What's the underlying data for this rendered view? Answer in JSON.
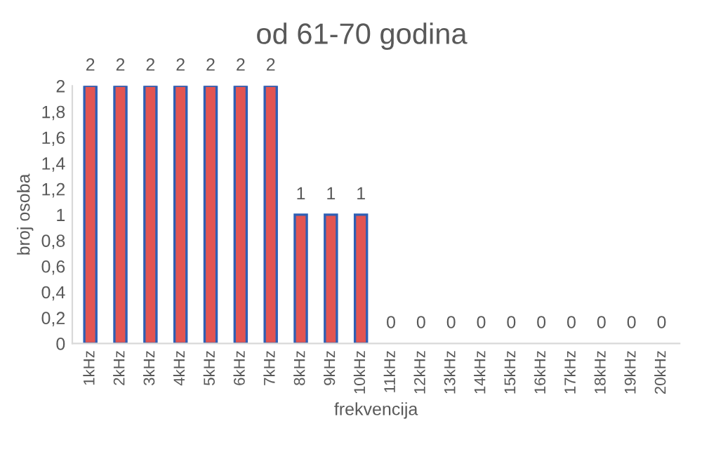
{
  "chart_data": {
    "type": "bar",
    "title": "od 61-70 godina",
    "xlabel": "frekvencija",
    "ylabel": "broj osoba",
    "categories": [
      "1kHz",
      "2kHz",
      "3kHz",
      "4kHz",
      "5kHz",
      "6kHz",
      "7kHz",
      "8kHz",
      "9kHz",
      "10kHz",
      "11kHz",
      "12kHz",
      "13kHz",
      "14kHz",
      "15kHz",
      "16kHz",
      "17kHz",
      "18kHz",
      "19kHz",
      "20kHz"
    ],
    "values": [
      2,
      2,
      2,
      2,
      2,
      2,
      2,
      1,
      1,
      1,
      0,
      0,
      0,
      0,
      0,
      0,
      0,
      0,
      0,
      0
    ],
    "color": "#e25552",
    "ylim": [
      0,
      2
    ],
    "yticks": [
      0,
      {
        "value": 0.2,
        "label": "0,2"
      },
      {
        "value": 0.4,
        "label": "0,4"
      },
      {
        "value": 0.6,
        "label": "0,6"
      },
      {
        "value": 0.8,
        "label": "0,8"
      },
      1,
      {
        "value": 1.2,
        "label": "1,2"
      },
      {
        "value": 1.4,
        "label": "1,4"
      },
      {
        "value": 1.6,
        "label": "1,6"
      },
      {
        "value": 1.8,
        "label": "1,8"
      },
      2
    ],
    "data_labels": true,
    "grid": false,
    "legend": false
  }
}
